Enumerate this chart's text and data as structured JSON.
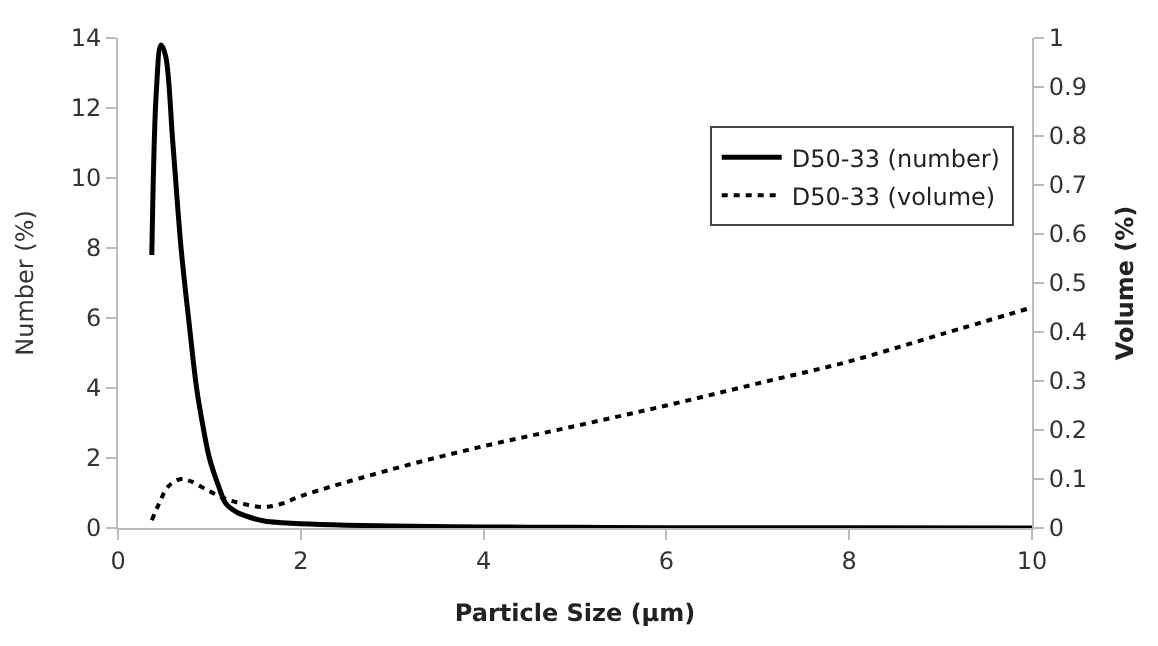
{
  "chart_data": {
    "type": "line",
    "xlabel": "Particle Size (µm)",
    "ylabel": "Number (%)",
    "y2label": "Volume (%)",
    "xlim": [
      0,
      10
    ],
    "xticks": [
      0,
      2,
      4,
      6,
      8,
      10
    ],
    "ylim": [
      0,
      14
    ],
    "yticks": [
      0,
      2,
      4,
      6,
      8,
      10,
      12,
      14
    ],
    "y2lim": [
      0,
      1
    ],
    "y2ticks": [
      0,
      0.1,
      0.2,
      0.3,
      0.4,
      0.5,
      0.6,
      0.7,
      0.8,
      0.9,
      1
    ],
    "legend": "top right",
    "series": [
      {
        "name": "D50-33 (number)",
        "color": "#000000",
        "line_style": "solid",
        "x": [
          0.37,
          0.42,
          0.47,
          0.52,
          0.6,
          0.69,
          0.78,
          0.86,
          0.93,
          1.0,
          1.1,
          1.18,
          1.3,
          1.45,
          1.6,
          1.8,
          2,
          2.5,
          3,
          4,
          5,
          6,
          8,
          10
        ],
        "values": [
          7.8,
          12.5,
          13.8,
          13.5,
          11,
          8,
          5.8,
          4,
          2.9,
          2,
          1.2,
          0.7,
          0.45,
          0.3,
          0.2,
          0.15,
          0.12,
          0.08,
          0.06,
          0.03,
          0.02,
          0.01,
          0.01,
          0
        ]
      },
      {
        "name": "D50-33 (volume)",
        "color": "#000000",
        "line_style": "dotted",
        "axis": "y2",
        "x": [
          0.37,
          0.45,
          0.55,
          0.69,
          0.8,
          1.0,
          1.2,
          1.4,
          1.6,
          1.8,
          2,
          3,
          4,
          5,
          6,
          7,
          8,
          9,
          10
        ],
        "values": [
          0.016,
          0.05,
          0.085,
          0.1,
          0.095,
          0.075,
          0.058,
          0.048,
          0.043,
          0.05,
          0.065,
          0.12,
          0.167,
          0.208,
          0.25,
          0.295,
          0.34,
          0.395,
          0.45
        ]
      }
    ]
  }
}
